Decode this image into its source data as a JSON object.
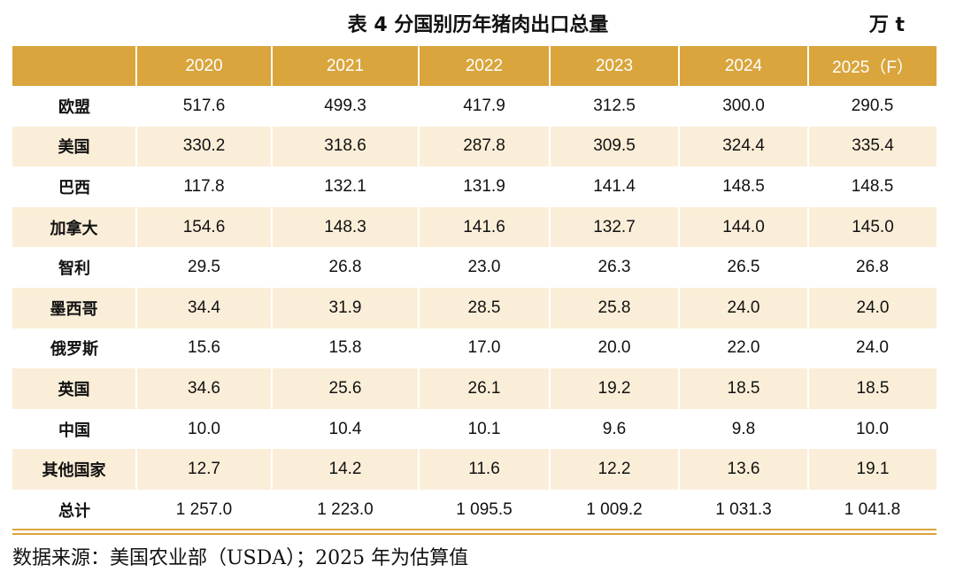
{
  "title": "表 4  分国别历年猪肉出口总量",
  "unit": "万 t",
  "table": {
    "headers": [
      "",
      "2020",
      "2021",
      "2022",
      "2023",
      "2024",
      "2025（F）"
    ],
    "rows": [
      {
        "country": "欧盟",
        "values": [
          "517.6",
          "499.3",
          "417.9",
          "312.5",
          "300.0",
          "290.5"
        ]
      },
      {
        "country": "美国",
        "values": [
          "330.2",
          "318.6",
          "287.8",
          "309.5",
          "324.4",
          "335.4"
        ]
      },
      {
        "country": "巴西",
        "values": [
          "117.8",
          "132.1",
          "131.9",
          "141.4",
          "148.5",
          "148.5"
        ]
      },
      {
        "country": "加拿大",
        "values": [
          "154.6",
          "148.3",
          "141.6",
          "132.7",
          "144.0",
          "145.0"
        ]
      },
      {
        "country": "智利",
        "values": [
          "29.5",
          "26.8",
          "23.0",
          "26.3",
          "26.5",
          "26.8"
        ]
      },
      {
        "country": "墨西哥",
        "values": [
          "34.4",
          "31.9",
          "28.5",
          "25.8",
          "24.0",
          "24.0"
        ]
      },
      {
        "country": "俄罗斯",
        "values": [
          "15.6",
          "15.8",
          "17.0",
          "20.0",
          "22.0",
          "24.0"
        ]
      },
      {
        "country": "英国",
        "values": [
          "34.6",
          "25.6",
          "26.1",
          "19.2",
          "18.5",
          "18.5"
        ]
      },
      {
        "country": "中国",
        "values": [
          "10.0",
          "10.4",
          "10.1",
          "9.6",
          "9.8",
          "10.0"
        ]
      },
      {
        "country": "其他国家",
        "values": [
          "12.7",
          "14.2",
          "11.6",
          "12.2",
          "13.6",
          "19.1"
        ]
      },
      {
        "country": "总计",
        "values": [
          "1 257.0",
          "1 223.0",
          "1 095.5",
          "1 009.2",
          "1 031.3",
          "1 041.8"
        ]
      }
    ]
  },
  "source": "数据来源：美国农业部（USDA）；2025 年为估算值",
  "colors": {
    "header_bg": "#d9a53c",
    "stripe_bg": "#fbeed8",
    "header_text": "#ffffff"
  }
}
